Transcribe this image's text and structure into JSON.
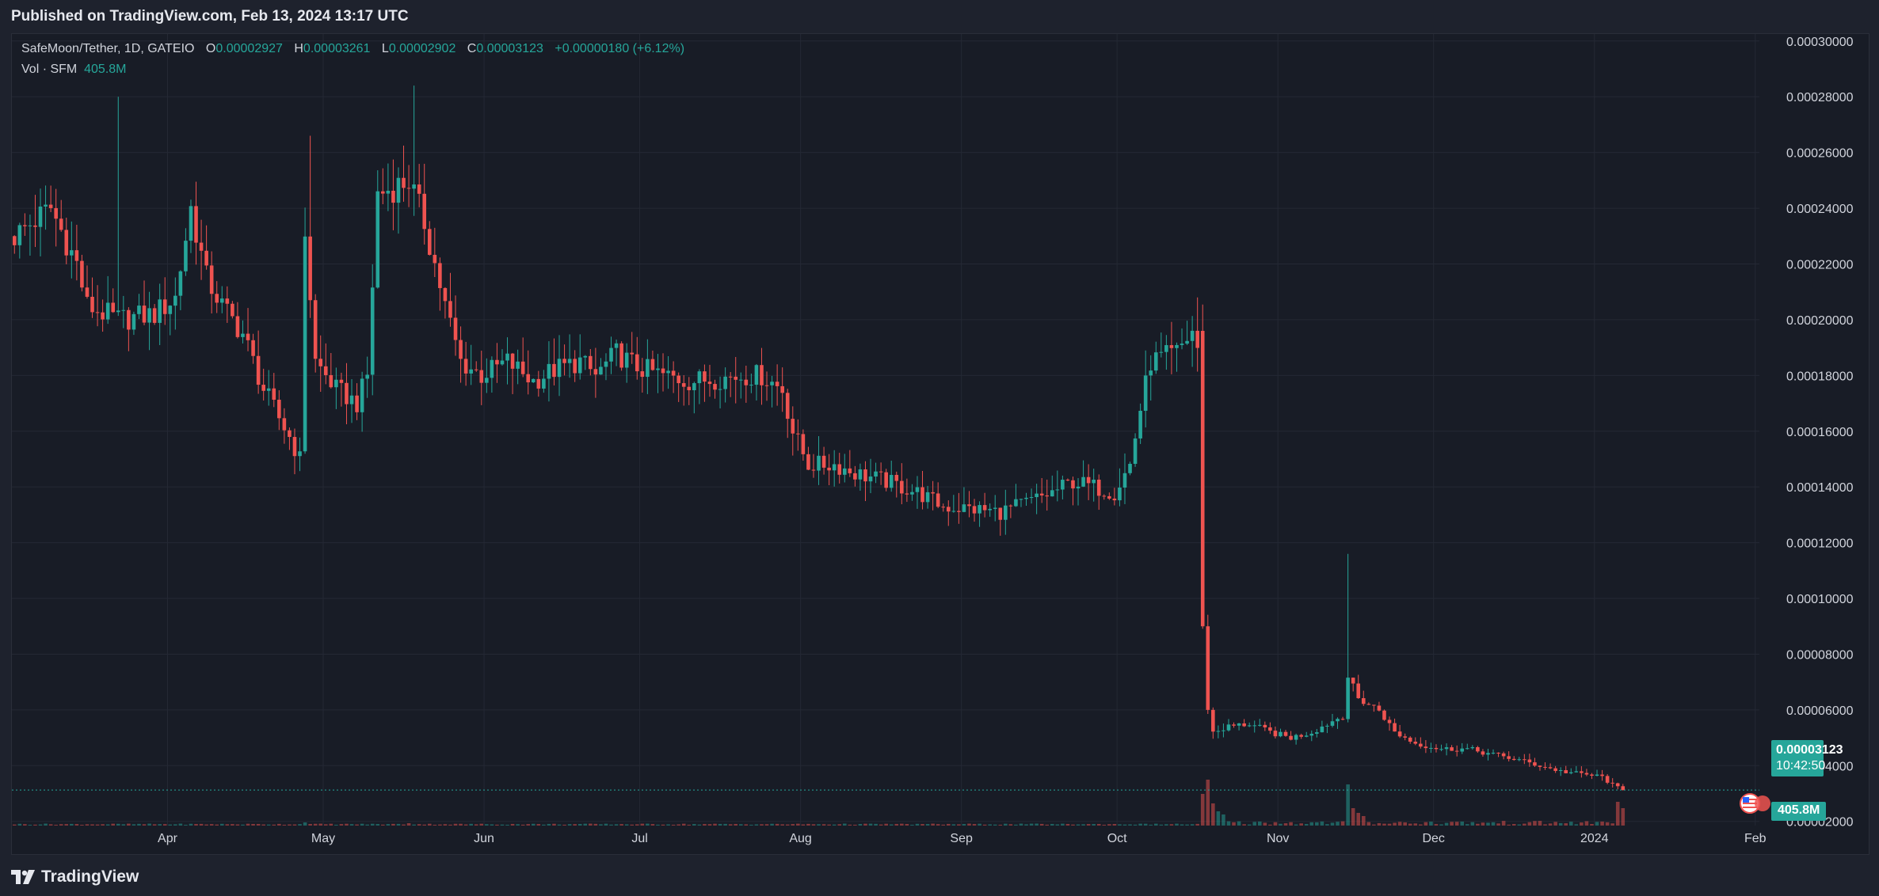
{
  "header": {
    "published": "Published on TradingView.com, Feb 13, 2024 13:17 UTC"
  },
  "legend": {
    "symbol": "SafeMoon/Tether, 1D, GATEIO",
    "open_label": "O",
    "open": "0.00002927",
    "high_label": "H",
    "high": "0.00003261",
    "low_label": "L",
    "low": "0.00002902",
    "close_label": "C",
    "close": "0.00003123",
    "change": "+0.00000180 (+6.12%)",
    "vol_label": "Vol · SFM",
    "vol_value": "405.8M"
  },
  "badges": {
    "last_price": "0.00003123",
    "countdown": "10:42:50",
    "volume": "405.8M"
  },
  "footer": {
    "brand": "TradingView"
  },
  "colors": {
    "up": "#26a69a",
    "down": "#ef5350",
    "background": "#181c26",
    "grid": "#242834"
  },
  "chart_data": {
    "type": "candlestick",
    "title": "SafeMoon/Tether, 1D, GATEIO",
    "ylim": [
      1.85e-05,
      0.0003025
    ],
    "y_ticks": [
      "0.00030000",
      "0.00028000",
      "0.00026000",
      "0.00024000",
      "0.00022000",
      "0.00020000",
      "0.00018000",
      "0.00016000",
      "0.00014000",
      "0.00012000",
      "0.00010000",
      "0.00008000",
      "0.00006000",
      "0.00004000",
      "0.00002000"
    ],
    "y_tick_values": [
      0.0003,
      0.00028,
      0.00026,
      0.00024,
      0.00022,
      0.0002,
      0.00018,
      0.00016,
      0.00014,
      0.00012,
      0.0001,
      8e-05,
      6e-05,
      4e-05,
      2e-05
    ],
    "x_ticks": [
      {
        "label": "Apr",
        "day": 30
      },
      {
        "label": "May",
        "day": 60
      },
      {
        "label": "Jun",
        "day": 91
      },
      {
        "label": "Jul",
        "day": 121
      },
      {
        "label": "Aug",
        "day": 152
      },
      {
        "label": "Sep",
        "day": 183
      },
      {
        "label": "Oct",
        "day": 213
      },
      {
        "label": "Nov",
        "day": 244
      },
      {
        "label": "Dec",
        "day": 274
      },
      {
        "label": "2024",
        "day": 305
      },
      {
        "label": "Feb",
        "day": 336
      }
    ],
    "last_price": 3.123e-05,
    "anchors": [
      [
        0,
        0.00023
      ],
      [
        7,
        0.00024
      ],
      [
        12,
        0.00022
      ],
      [
        14,
        0.000205
      ],
      [
        20,
        0.0002
      ],
      [
        27,
        0.000202
      ],
      [
        31,
        0.000208
      ],
      [
        34,
        0.00024
      ],
      [
        37,
        0.000215
      ],
      [
        40,
        0.000205
      ],
      [
        44,
        0.000195
      ],
      [
        48,
        0.000175
      ],
      [
        53,
        0.000158
      ],
      [
        55,
        0.00015
      ],
      [
        56,
        0.000232
      ],
      [
        58,
        0.000185
      ],
      [
        62,
        0.000175
      ],
      [
        66,
        0.00017
      ],
      [
        68,
        0.00018
      ],
      [
        70,
        0.000245
      ],
      [
        76,
        0.00025
      ],
      [
        79,
        0.000235
      ],
      [
        83,
        0.000205
      ],
      [
        86,
        0.000185
      ],
      [
        90,
        0.00018
      ],
      [
        95,
        0.000185
      ],
      [
        100,
        0.000178
      ],
      [
        104,
        0.000182
      ],
      [
        109,
        0.000185
      ],
      [
        112,
        0.00018
      ],
      [
        116,
        0.000188
      ],
      [
        120,
        0.000183
      ],
      [
        125,
        0.00018
      ],
      [
        130,
        0.000178
      ],
      [
        136,
        0.000179
      ],
      [
        141,
        0.00018
      ],
      [
        144,
        0.00018
      ],
      [
        148,
        0.000175
      ],
      [
        150,
        0.00016
      ],
      [
        153,
        0.000148
      ],
      [
        158,
        0.000148
      ],
      [
        162,
        0.000145
      ],
      [
        168,
        0.000142
      ],
      [
        174,
        0.000138
      ],
      [
        179,
        0.000133
      ],
      [
        185,
        0.000132
      ],
      [
        190,
        0.000131
      ],
      [
        196,
        0.000135
      ],
      [
        200,
        0.000138
      ],
      [
        204,
        0.000142
      ],
      [
        208,
        0.00014
      ],
      [
        212,
        0.000138
      ],
      [
        215,
        0.000148
      ],
      [
        217,
        0.000168
      ],
      [
        219,
        0.000185
      ],
      [
        224,
        0.000188
      ],
      [
        227,
        0.000196
      ],
      [
        228,
        0.00019
      ],
      [
        229,
        9e-05
      ],
      [
        230,
        6e-05
      ],
      [
        231,
        5.2e-05
      ],
      [
        234,
        5.4e-05
      ],
      [
        238,
        5.5e-05
      ],
      [
        242,
        5.2e-05
      ],
      [
        246,
        5e-05
      ],
      [
        250,
        5.2e-05
      ],
      [
        254,
        5.6e-05
      ],
      [
        256,
        5.8e-05
      ],
      [
        257,
        7.2e-05
      ],
      [
        259,
        6.4e-05
      ],
      [
        263,
        6e-05
      ],
      [
        266,
        5.2e-05
      ],
      [
        270,
        4.8e-05
      ],
      [
        275,
        4.6e-05
      ],
      [
        280,
        4.6e-05
      ],
      [
        285,
        4.4e-05
      ],
      [
        290,
        4.2e-05
      ],
      [
        294,
        4e-05
      ],
      [
        298,
        3.8e-05
      ],
      [
        302,
        3.7e-05
      ],
      [
        306,
        3.6e-05
      ],
      [
        308,
        3.3e-05
      ],
      [
        310,
        3.1e-05
      ]
    ],
    "volume_spikes": [
      [
        56,
        4
      ],
      [
        76,
        3
      ],
      [
        229,
        40
      ],
      [
        230,
        58
      ],
      [
        231,
        28
      ],
      [
        232,
        18
      ],
      [
        233,
        14
      ],
      [
        257,
        52
      ],
      [
        258,
        22
      ],
      [
        259,
        16
      ],
      [
        260,
        12
      ],
      [
        309,
        30
      ],
      [
        310,
        22
      ]
    ],
    "volume_max": 60,
    "volume_latest": "405.8M"
  }
}
